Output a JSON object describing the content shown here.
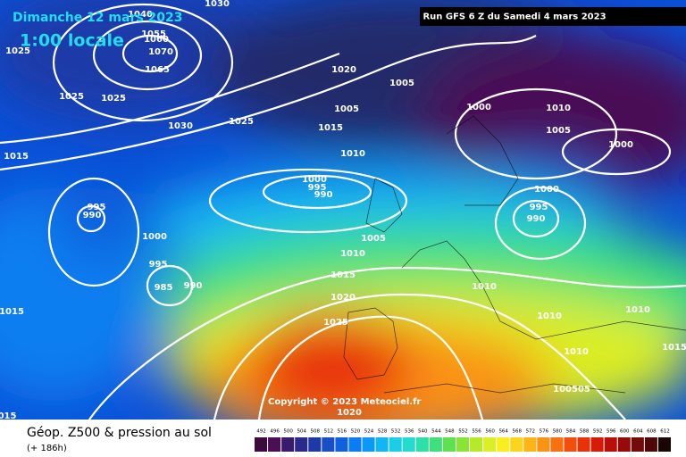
{
  "header": {
    "date": "Dimanche 12 mars 2023",
    "time": "1:00 locale",
    "run": "Run GFS 6 Z du Samedi 4 mars 2023"
  },
  "copyright": "Copyright © 2023 Meteociel.fr",
  "footer": {
    "title": "Géop. Z500 & pression au sol",
    "lead": "(+ 186h)"
  },
  "isobars": {
    "labels": [
      1030,
      1040,
      1055,
      1060,
      1070,
      1065,
      1025,
      1025,
      1025,
      1030,
      1025,
      1020,
      1005,
      1005,
      1015,
      1010,
      1000,
      1010,
      1005,
      1000,
      1015,
      995,
      990,
      1000,
      995,
      990,
      1000,
      995,
      990,
      1005,
      1000,
      995,
      985,
      990,
      1010,
      1015,
      1020,
      1025,
      1010,
      1010,
      1010,
      1015,
      1015,
      1010,
      100505,
      1020,
      "015"
    ]
  },
  "scale": {
    "labels": [
      492,
      496,
      500,
      504,
      508,
      512,
      516,
      520,
      524,
      528,
      532,
      536,
      540,
      544,
      548,
      552,
      556,
      560,
      564,
      568,
      572,
      576,
      580,
      584,
      588,
      592,
      596,
      600,
      604,
      608,
      612
    ],
    "colors": [
      "#3c0a3c",
      "#4a0f55",
      "#3a1a6e",
      "#2a2a8a",
      "#1e3aa8",
      "#1a4ec4",
      "#1062dc",
      "#0a7ef0",
      "#0a9af6",
      "#12b6f4",
      "#1ccde8",
      "#22dcd0",
      "#2ee0a8",
      "#3ee07c",
      "#5ee050",
      "#8ae436",
      "#b4ea2a",
      "#dcee24",
      "#f8ee20",
      "#fcd41c",
      "#fcb418",
      "#fa9214",
      "#f87010",
      "#f44e0c",
      "#e8320a",
      "#d41c08",
      "#b81008",
      "#960a0a",
      "#740a0a",
      "#4e0808",
      "#1a0505"
    ]
  }
}
